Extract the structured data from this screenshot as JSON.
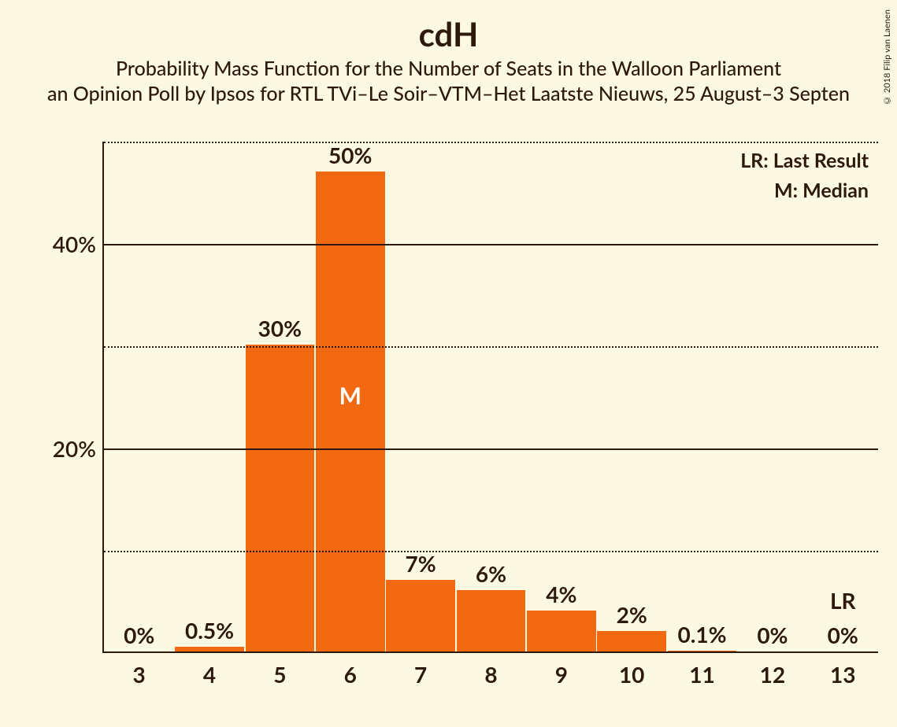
{
  "copyright": "© 2018 Filip van Laenen",
  "title": "cdH",
  "subtitle1": "Probability Mass Function for the Number of Seats in the Walloon Parliament",
  "subtitle2": "an Opinion Poll by Ipsos for RTL TVi–Le Soir–VTM–Het Laatste Nieuws, 25 August–3 Septen",
  "chart": {
    "type": "bar",
    "bar_color": "#f26912",
    "background_color": "#fcf9e3",
    "text_color": "#2e1a0c",
    "median_letter": "M",
    "median_index": 3,
    "lr_index": 10,
    "lr_letter": "LR",
    "legend": {
      "lr": "LR: Last Result",
      "m": "M: Median"
    },
    "y_axis": {
      "max": 50,
      "solid_ticks": [
        20,
        40
      ],
      "dotted_ticks": [
        10,
        30,
        50
      ],
      "labeled": [
        {
          "v": 20,
          "label": "20%"
        },
        {
          "v": 40,
          "label": "40%"
        }
      ]
    },
    "categories": [
      "3",
      "4",
      "5",
      "6",
      "7",
      "8",
      "9",
      "10",
      "11",
      "12",
      "13"
    ],
    "values": [
      0,
      0.5,
      30,
      50,
      7,
      6,
      4,
      2,
      0.1,
      0,
      0
    ],
    "value_labels": [
      "0%",
      "0.5%",
      "30%",
      "50%",
      "7%",
      "6%",
      "4%",
      "2%",
      "0.1%",
      "0%",
      "0%"
    ]
  }
}
